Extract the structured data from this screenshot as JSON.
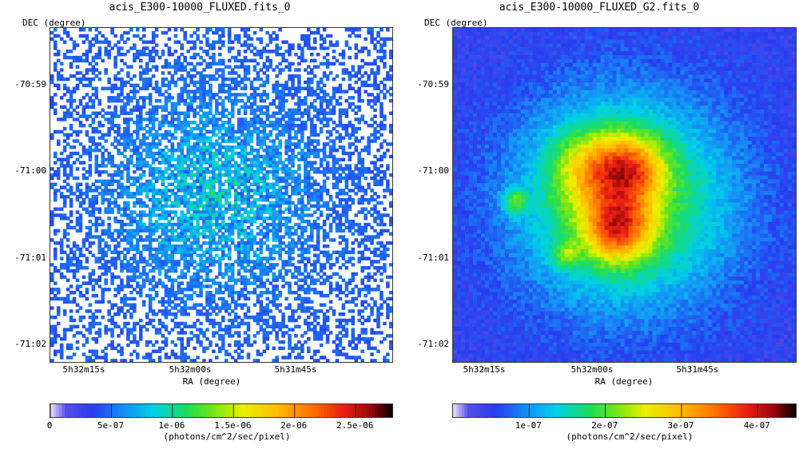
{
  "chart_data": [
    {
      "type": "heatmap",
      "title": "acis_E300-10000_FLUXED.fits_0",
      "xlabel": "RA (degree)",
      "ylabel": "DEC (degree)",
      "x_ticks": [
        "5h32m15s",
        "5h32m00s",
        "5h31m45s"
      ],
      "y_ticks": [
        "-70:59",
        "-71:00",
        "-71:01",
        "-71:02"
      ],
      "colorbar": {
        "ticks": [
          "0",
          "5e-07",
          "1e-06",
          "1.5e-06",
          "2e-06",
          "2.5e-06"
        ],
        "tick_values": [
          0,
          5e-07,
          1e-06,
          1.5e-06,
          2e-06,
          2.5e-06
        ],
        "range": [
          0,
          2.8e-06
        ],
        "unit": "(photons/cm^2/sec/pixel)"
      },
      "colormap": "spectral",
      "rendering": "noisy-counts"
    },
    {
      "type": "heatmap",
      "title": "acis_E300-10000_FLUXED_G2.fits_0",
      "xlabel": "RA (degree)",
      "ylabel": "DEC (degree)",
      "x_ticks": [
        "5h32m15s",
        "5h32m00s",
        "5h31m45s"
      ],
      "y_ticks": [
        "-70:59",
        "-71:00",
        "-71:01",
        "-71:02"
      ],
      "colorbar": {
        "ticks": [
          "1e-07",
          "2e-07",
          "3e-07",
          "4e-07"
        ],
        "tick_values": [
          1e-07,
          2e-07,
          3e-07,
          4e-07
        ],
        "range": [
          0,
          4.5e-07
        ],
        "unit": "(photons/cm^2/sec/pixel)"
      },
      "colormap": "spectral",
      "rendering": "smoothed"
    }
  ]
}
